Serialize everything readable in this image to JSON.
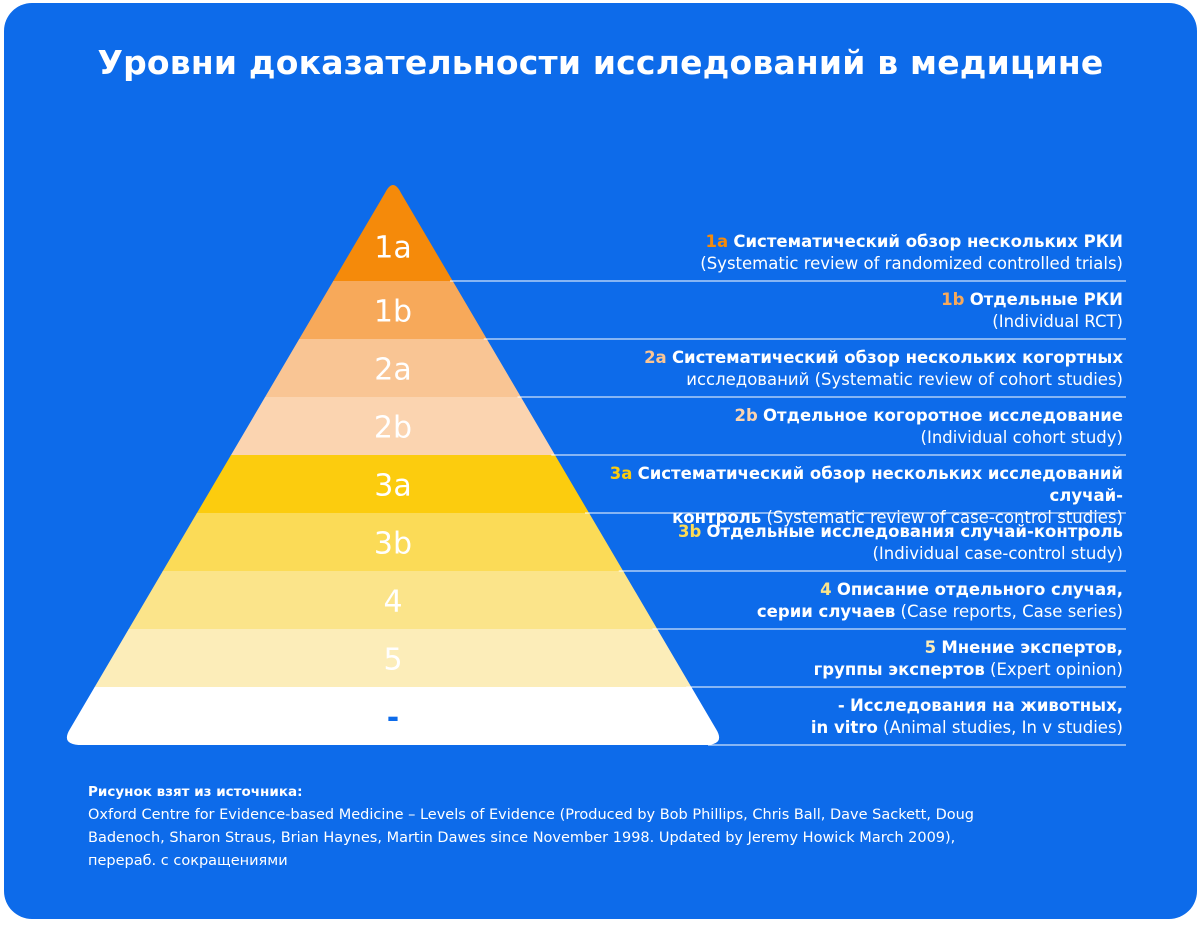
{
  "title": "Уровни доказательности исследований в медицине",
  "colors": {
    "background": "#0d6bea",
    "levels": [
      "#f58a0a",
      "#f7a95a",
      "#f9c594",
      "#fbd4b0",
      "#fccc0e",
      "#fbdb57",
      "#fbe48a",
      "#fcedb9",
      "#ffffff"
    ],
    "code_colors": [
      "#f58a0a",
      "#f7a95a",
      "#f9c594",
      "#fbd4b0",
      "#fccc0e",
      "#fbdb57",
      "#fbe48a",
      "#fcedb9",
      "#ffffff"
    ]
  },
  "levels": [
    {
      "label": "1a",
      "code": "1a",
      "bold": "Систематический обзор нескольких РКИ",
      "line2": "(Systematic review of randomized controlled trials)"
    },
    {
      "label": "1b",
      "code": "1b",
      "bold": "Отдельные РКИ",
      "line2": "(Individual RCT)"
    },
    {
      "label": "2a",
      "code": "2a",
      "bold": "Систематический обзор нескольких когортных",
      "line2": "исследований (Systematic review of cohort studies)"
    },
    {
      "label": "2b",
      "code": "2b",
      "bold": "Отдельное когоротное исследование",
      "line2": "(Individual cohort study)"
    },
    {
      "label": "3a",
      "code": "3a",
      "bold": "Систематический обзор нескольких исследований случай-",
      "line2_bold": "контроль",
      "line2": " (Systematic review of case-control studies)"
    },
    {
      "label": "3b",
      "code": "3b",
      "bold": "Отдельные исследования случай-контроль",
      "line2": "(Individual case-control study)"
    },
    {
      "label": "4",
      "code": "4",
      "bold": "Описание отдельного случая,",
      "line2_bold": "серии случаев",
      "line2": " (Case reports, Case series)"
    },
    {
      "label": "5",
      "code": "5",
      "bold": "Мнение экспертов,",
      "line2_bold": "группы экспертов",
      "line2": " (Expert opinion)"
    },
    {
      "label": "-",
      "code": "-",
      "bold": "Исследования на животных,",
      "line2_bold": "in vitro",
      "line2": " (Animal studies, In v studies)"
    }
  ],
  "source": {
    "heading": "Рисунок взят из источника:",
    "line1": "Oxford Centre for Evidence-based Medicine – Levels of Evidence (Produced by Bob Phillips, Chris Ball, Dave Sackett, Doug",
    "line2": "Badenoch, Sharon Straus, Brian Haynes, Martin Dawes since November 1998. Updated by Jeremy Howick March 2009),",
    "line3": "перераб. с сокращениями"
  }
}
